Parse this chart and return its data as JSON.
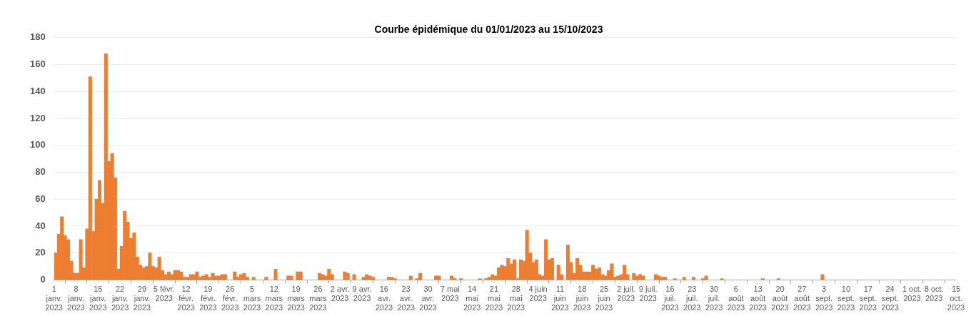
{
  "chart_data": {
    "type": "bar",
    "title": "Courbe épidémique du 01/01/2023 au 15/10/2023",
    "x": [
      "2023-01-01T12:00",
      "2023-01-02T12:00",
      "2023-01-03T12:00",
      "2023-01-04T12:00",
      "2023-01-05T12:00",
      "2023-01-06T12:00",
      "2023-01-07T12:00",
      "2023-01-08T12:00",
      "2023-01-09T12:00",
      "2023-01-10T12:00",
      "2023-01-11T12:00",
      "2023-01-12T12:00",
      "2023-01-13T12:00",
      "2023-01-14T12:00",
      "2023-01-15T12:00",
      "2023-01-16T12:00",
      "2023-01-17T12:00",
      "2023-01-18T12:00",
      "2023-01-19T12:00",
      "2023-01-20T12:00",
      "2023-01-21T12:00",
      "2023-01-22T12:00",
      "2023-01-23T12:00",
      "2023-01-24T12:00",
      "2023-01-25T12:00",
      "2023-01-26T12:00",
      "2023-01-27T12:00",
      "2023-01-28T12:00",
      "2023-01-29T12:00",
      "2023-01-30T12:00",
      "2023-01-31T12:00",
      "2023-02-01T12:00",
      "2023-02-02T12:00",
      "2023-02-03T12:00",
      "2023-02-04T12:00",
      "2023-02-05T12:00",
      "2023-02-06T12:00",
      "2023-02-07T12:00",
      "2023-02-08T12:00",
      "2023-02-09T12:00",
      "2023-02-10T12:00",
      "2023-02-11T12:00",
      "2023-02-12T12:00",
      "2023-02-13T12:00",
      "2023-02-14T12:00",
      "2023-02-15T12:00",
      "2023-02-16T12:00",
      "2023-02-17T12:00",
      "2023-02-18T12:00",
      "2023-02-19T12:00",
      "2023-02-20T12:00",
      "2023-02-21T12:00",
      "2023-02-22T12:00",
      "2023-02-23T12:00",
      "2023-02-24T12:00",
      "2023-02-27T12:00",
      "2023-02-28T12:00",
      "2023-03-01T12:00",
      "2023-03-02T12:00",
      "2023-03-03T12:00",
      "2023-03-05T12:00",
      "2023-03-09T12:00",
      "2023-03-12T12:00",
      "2023-03-16T12:00",
      "2023-03-17T12:00",
      "2023-03-19T12:00",
      "2023-03-20T12:00",
      "2023-03-26T12:00",
      "2023-03-27T12:00",
      "2023-03-28T12:00",
      "2023-03-29T12:00",
      "2023-03-30T12:00",
      "2023-04-03T12:00",
      "2023-04-04T12:00",
      "2023-04-06T12:00",
      "2023-04-09T12:00",
      "2023-04-10T12:00",
      "2023-04-11T12:00",
      "2023-04-12T12:00",
      "2023-04-17T12:00",
      "2023-04-18T12:00",
      "2023-04-19T12:00",
      "2023-04-24T12:00",
      "2023-04-26T12:00",
      "2023-04-27T12:00",
      "2023-05-02T12:00",
      "2023-05-03T12:00",
      "2023-05-07T12:00",
      "2023-05-08T12:00",
      "2023-05-10T12:00",
      "2023-05-16T12:00",
      "2023-05-18T12:00",
      "2023-05-19T12:00",
      "2023-05-20T12:00",
      "2023-05-21T12:00",
      "2023-05-22T12:00",
      "2023-05-23T12:00",
      "2023-05-24T12:00",
      "2023-05-25T12:00",
      "2023-05-26T12:00",
      "2023-05-27T12:00",
      "2023-05-28T12:00",
      "2023-05-29T12:00",
      "2023-05-30T12:00",
      "2023-05-31T12:00",
      "2023-06-01T12:00",
      "2023-06-02T12:00",
      "2023-06-03T12:00",
      "2023-06-04T12:00",
      "2023-06-05T12:00",
      "2023-06-06T12:00",
      "2023-06-07T12:00",
      "2023-06-08T12:00",
      "2023-06-10T12:00",
      "2023-06-11T12:00",
      "2023-06-13T12:00",
      "2023-06-14T12:00",
      "2023-06-15T12:00",
      "2023-06-16T12:00",
      "2023-06-17T12:00",
      "2023-06-18T12:00",
      "2023-06-19T12:00",
      "2023-06-20T12:00",
      "2023-06-21T12:00",
      "2023-06-22T12:00",
      "2023-06-23T12:00",
      "2023-06-24T12:00",
      "2023-06-25T12:00",
      "2023-06-26T12:00",
      "2023-06-27T12:00",
      "2023-06-28T12:00",
      "2023-06-29T12:00",
      "2023-06-30T12:00",
      "2023-07-01T12:00",
      "2023-07-02T12:00",
      "2023-07-04T12:00",
      "2023-07-05T12:00",
      "2023-07-06T12:00",
      "2023-07-07T12:00",
      "2023-07-11T12:00",
      "2023-07-12T12:00",
      "2023-07-13T12:00",
      "2023-07-14T12:00",
      "2023-07-17T12:00",
      "2023-07-20T12:00",
      "2023-07-23T12:00",
      "2023-07-26T12:00",
      "2023-07-27T12:00",
      "2023-08-01T12:00",
      "2023-08-14T12:00",
      "2023-08-19T12:00",
      "2023-09-02T12:00"
    ],
    "values": [
      20,
      34,
      47,
      33,
      30,
      14,
      5,
      5,
      30,
      9,
      38,
      151,
      36,
      60,
      74,
      57,
      168,
      88,
      94,
      76,
      8,
      25,
      51,
      43,
      31,
      35,
      17,
      11,
      9,
      10,
      20,
      10,
      9,
      17,
      7,
      4,
      6,
      4,
      7,
      7,
      6,
      2,
      2,
      4,
      4,
      6,
      2,
      3,
      4,
      2,
      5,
      3,
      3,
      4,
      4,
      6,
      2,
      4,
      5,
      2,
      2,
      2,
      8,
      3,
      3,
      6,
      6,
      5,
      4,
      3,
      8,
      4,
      6,
      5,
      4,
      2,
      4,
      3,
      2,
      2,
      2,
      1,
      3,
      1,
      5,
      3,
      3,
      3,
      1,
      1,
      1,
      1,
      2,
      4,
      3,
      9,
      11,
      10,
      16,
      12,
      15,
      1,
      15,
      14,
      37,
      20,
      13,
      15,
      4,
      3,
      30,
      15,
      16,
      11,
      4,
      26,
      13,
      5,
      16,
      11,
      6,
      6,
      6,
      11,
      8,
      9,
      4,
      3,
      7,
      12,
      2,
      3,
      4,
      11,
      4,
      5,
      3,
      4,
      3,
      4,
      3,
      2,
      2,
      1,
      2,
      2,
      1,
      3,
      1,
      1,
      1,
      4
    ],
    "color": "#ed7d31",
    "ylim": [
      0,
      180
    ],
    "yticks": [
      0,
      20,
      40,
      60,
      80,
      100,
      120,
      140,
      160,
      180
    ],
    "xlim": [
      "2023-01-01",
      "2023-10-15"
    ],
    "xticks": [
      {
        "value": "2023-01-01",
        "label": "1 janv. 2023"
      },
      {
        "value": "2023-01-08",
        "label": "8 janv. 2023"
      },
      {
        "value": "2023-01-15",
        "label": "15 janv. 2023"
      },
      {
        "value": "2023-01-22",
        "label": "22 janv. 2023"
      },
      {
        "value": "2023-01-29",
        "label": "29 janv. 2023"
      },
      {
        "value": "2023-02-05",
        "label": "5 févr. 2023"
      },
      {
        "value": "2023-02-12",
        "label": "12 févr. 2023"
      },
      {
        "value": "2023-02-19",
        "label": "19 févr. 2023"
      },
      {
        "value": "2023-02-26",
        "label": "26 févr. 2023"
      },
      {
        "value": "2023-03-05",
        "label": "5 mars 2023"
      },
      {
        "value": "2023-03-12",
        "label": "12 mars 2023"
      },
      {
        "value": "2023-03-19",
        "label": "19 mars 2023"
      },
      {
        "value": "2023-03-26",
        "label": "26 mars 2023"
      },
      {
        "value": "2023-04-02",
        "label": "2 avr. 2023"
      },
      {
        "value": "2023-04-09",
        "label": "9 avr. 2023"
      },
      {
        "value": "2023-04-16",
        "label": "16 avr. 2023"
      },
      {
        "value": "2023-04-23",
        "label": "23 avr. 2023"
      },
      {
        "value": "2023-04-30",
        "label": "30 avr. 2023"
      },
      {
        "value": "2023-05-07",
        "label": "7 mai 2023"
      },
      {
        "value": "2023-05-14",
        "label": "14 mai 2023"
      },
      {
        "value": "2023-05-21",
        "label": "21 mai 2023"
      },
      {
        "value": "2023-05-28",
        "label": "28 mai 2023"
      },
      {
        "value": "2023-06-04",
        "label": "4 juin 2023"
      },
      {
        "value": "2023-06-11",
        "label": "11 juin 2023"
      },
      {
        "value": "2023-06-18",
        "label": "18 juin 2023"
      },
      {
        "value": "2023-06-25",
        "label": "25 juin 2023"
      },
      {
        "value": "2023-07-02",
        "label": "2 juil. 2023"
      },
      {
        "value": "2023-07-09",
        "label": "9 juil. 2023"
      },
      {
        "value": "2023-07-16",
        "label": "16 juil. 2023"
      },
      {
        "value": "2023-07-23",
        "label": "23 juil. 2023"
      },
      {
        "value": "2023-07-30",
        "label": "30 juil. 2023"
      },
      {
        "value": "2023-08-06",
        "label": "6 août 2023"
      },
      {
        "value": "2023-08-13",
        "label": "13 août 2023"
      },
      {
        "value": "2023-08-20",
        "label": "20 août 2023"
      },
      {
        "value": "2023-08-27",
        "label": "27 août 2023"
      },
      {
        "value": "2023-09-03",
        "label": "3 sept. 2023"
      },
      {
        "value": "2023-09-10",
        "label": "10 sept. 2023"
      },
      {
        "value": "2023-09-17",
        "label": "17 sept. 2023"
      },
      {
        "value": "2023-09-24",
        "label": "24 sept. 2023"
      },
      {
        "value": "2023-10-01",
        "label": "1 oct. 2023"
      },
      {
        "value": "2023-10-08",
        "label": "8 oct. 2023"
      },
      {
        "value": "2023-10-15",
        "label": "15 oct. 2023"
      }
    ],
    "grid": "y"
  }
}
